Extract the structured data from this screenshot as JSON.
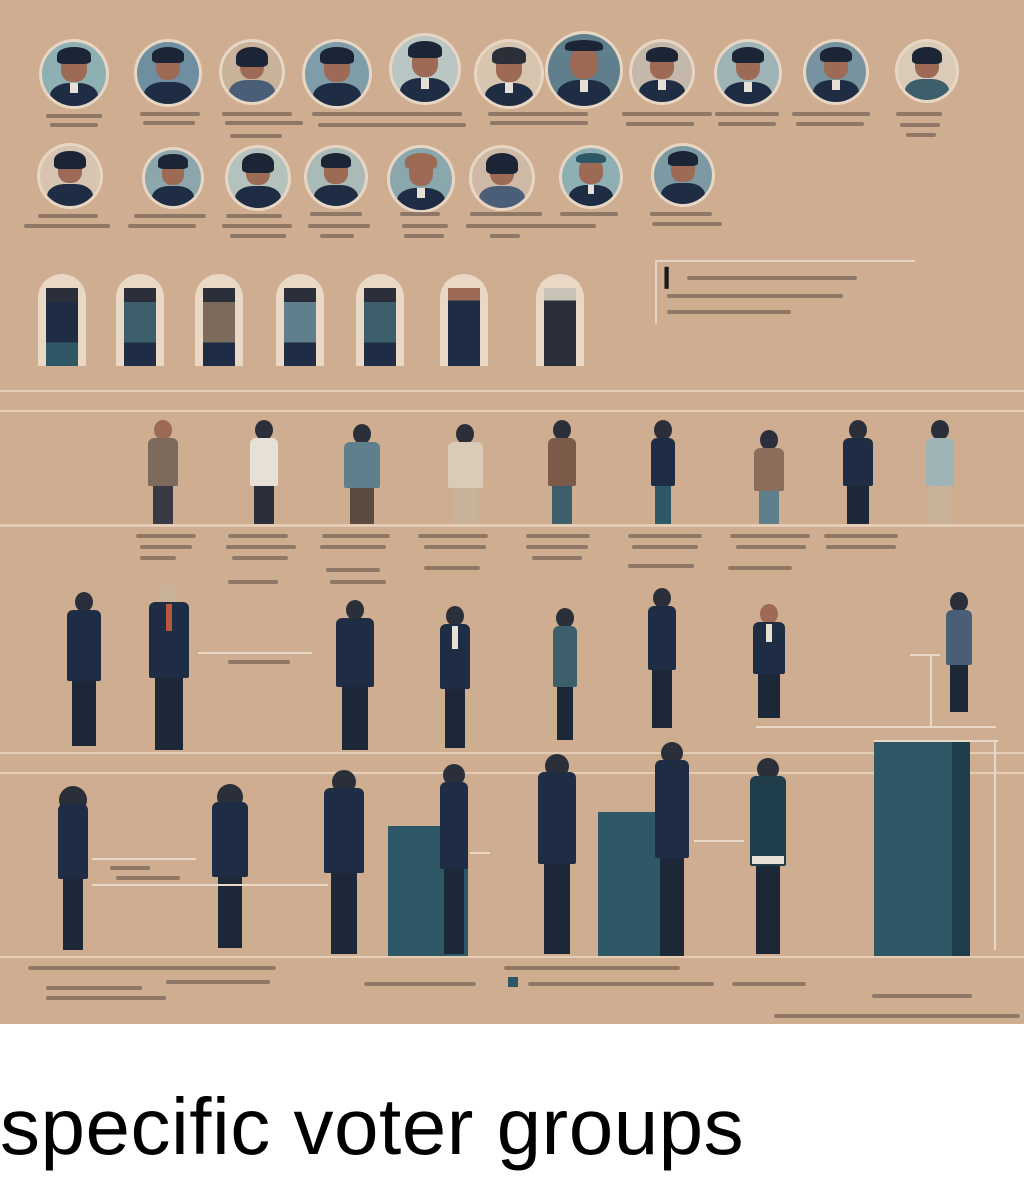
{
  "caption": "specific voter groups",
  "colors": {
    "background": "#cfad90",
    "suit": "#1f2d44",
    "accent_teal": "#2f5866",
    "skin": "#9c6a55"
  }
}
